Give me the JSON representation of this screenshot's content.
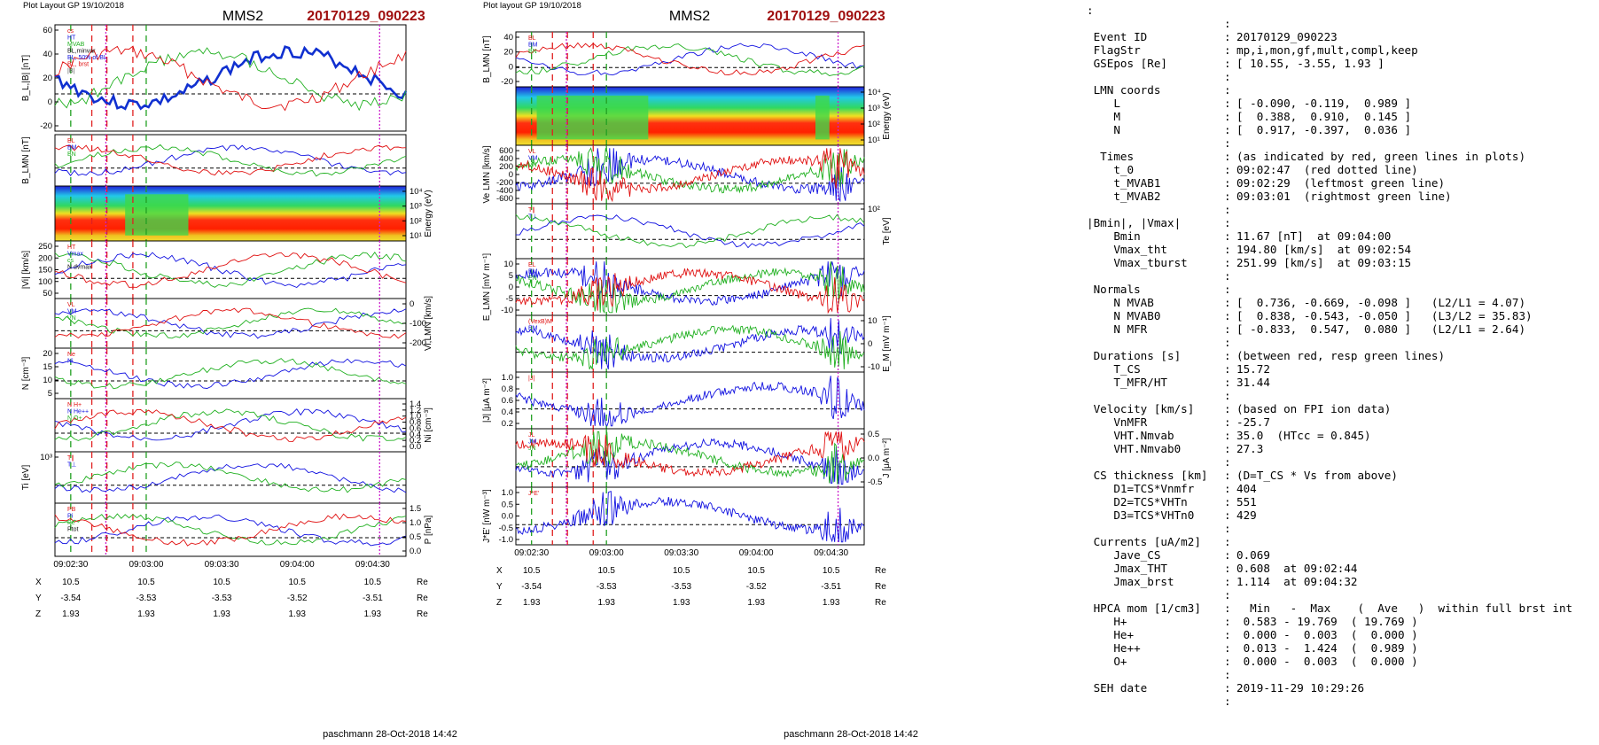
{
  "figures": [
    {
      "layout_label": "Plot Layout GP 19/10/2018",
      "spacecraft": "MMS2",
      "event": "20170129_090223",
      "footer": "paschmann 28-Oct-2018 14:42",
      "time_ticks": [
        "09:02:30",
        "09:03:00",
        "09:03:30",
        "09:04:00",
        "09:04:30"
      ],
      "position_rows": [
        {
          "label": "X",
          "values": [
            "10.5",
            "10.5",
            "10.5",
            "10.5",
            "10.5"
          ],
          "unit": "Re"
        },
        {
          "label": "Y",
          "values": [
            "-3.54",
            "-3.53",
            "-3.53",
            "-3.52",
            "-3.51"
          ],
          "unit": "Re"
        },
        {
          "label": "Z",
          "values": [
            "1.93",
            "1.93",
            "1.93",
            "1.93",
            "1.93"
          ],
          "unit": "Re"
        }
      ],
      "panels": [
        {
          "ylabel": "B_L,|B| [nT]",
          "ticks_left": [
            "60",
            "40",
            "20",
            "0",
            "-20"
          ],
          "ticks_right": [],
          "legend": [
            "cs",
            "HT",
            "MVAB",
            "BL,minvar",
            "BL, 50% of BL",
            "BL, brst",
            "|B|"
          ]
        },
        {
          "ylabel": "B_LMN [nT]",
          "ticks_left": [],
          "ticks_right": [],
          "legend": [
            "BL",
            "BM",
            "BN"
          ]
        },
        {
          "ylabel": "Energy (eV)",
          "ticks_left": [],
          "ticks_right": [
            "10⁴",
            "10³",
            "10²",
            "10¹"
          ],
          "legend": []
        },
        {
          "ylabel": "|Vi| [km/s]",
          "ticks_left": [
            "250",
            "200",
            "150",
            "100",
            "50"
          ],
          "ticks_right": [],
          "legend": [
            "HT",
            "Vmax",
            "cs",
            "N dvmax"
          ]
        },
        {
          "ylabel": "Vi,LMN [km/s]",
          "ticks_left": [],
          "ticks_right": [
            "0",
            "-100",
            "-200"
          ],
          "legend": [
            "VL",
            "VM",
            "VN"
          ]
        },
        {
          "ylabel": "N [cm⁻³]",
          "ticks_left": [
            "20",
            "15",
            "10",
            "5"
          ],
          "ticks_right": [],
          "legend": [
            "Ne",
            "Ni"
          ]
        },
        {
          "ylabel": "Ni [cm⁻³]",
          "ticks_left": [],
          "ticks_right": [
            "1.4",
            "1.2",
            "1.0",
            "0.8",
            "0.6",
            "0.4",
            "0.2",
            "0.0"
          ],
          "legend": [
            "N H+",
            "N He++",
            "N O+"
          ]
        },
        {
          "ylabel": "Ti [eV]",
          "ticks_left": [
            "10³"
          ],
          "ticks_right": [],
          "legend": [
            "T∥",
            "T⊥"
          ]
        },
        {
          "ylabel": "P [nPa]",
          "ticks_left": [],
          "ticks_right": [
            "1.5",
            "1.0",
            "0.5",
            "0.0"
          ],
          "legend": [
            "PB",
            "Pi",
            "Pe",
            "Ptot"
          ]
        }
      ]
    },
    {
      "layout_label": "Plot layout GP 19/10/2018",
      "spacecraft": "MMS2",
      "event": "20170129_090223",
      "footer": "paschmann 28-Oct-2018 14:42",
      "time_ticks": [
        "09:02:30",
        "09:03:00",
        "09:03:30",
        "09:04:00",
        "09:04:30"
      ],
      "position_rows": [
        {
          "label": "X",
          "values": [
            "10.5",
            "10.5",
            "10.5",
            "10.5",
            "10.5"
          ],
          "unit": "Re"
        },
        {
          "label": "Y",
          "values": [
            "-3.54",
            "-3.53",
            "-3.53",
            "-3.52",
            "-3.51"
          ],
          "unit": "Re"
        },
        {
          "label": "Z",
          "values": [
            "1.93",
            "1.93",
            "1.93",
            "1.93",
            "1.93"
          ],
          "unit": "Re"
        }
      ],
      "panels": [
        {
          "ylabel": "B_LMN [nT]",
          "ticks_left": [
            "40",
            "20",
            "0",
            "-20"
          ],
          "ticks_right": [],
          "legend": [
            "BL",
            "BM",
            "BN"
          ]
        },
        {
          "ylabel": "Energy (eV)",
          "ticks_left": [],
          "ticks_right": [
            "10⁴",
            "10³",
            "10²",
            "10¹"
          ],
          "legend": []
        },
        {
          "ylabel": "Ve LMN [km/s]",
          "ticks_left": [
            "600",
            "400",
            "200",
            "0",
            "-200",
            "-400",
            "-600"
          ],
          "ticks_right": [],
          "legend": [
            "VL",
            "VM",
            "VN"
          ]
        },
        {
          "ylabel": "Te [eV]",
          "ticks_left": [],
          "ticks_right": [
            "10²"
          ],
          "legend": [
            "T∥",
            "T⊥"
          ]
        },
        {
          "ylabel": "E_LMN [mV m⁻¹]",
          "ticks_left": [
            "10",
            "5",
            "0",
            "-5",
            "-10"
          ],
          "ticks_right": [],
          "legend": [
            "EL",
            "EM",
            "EN"
          ]
        },
        {
          "ylabel": "E_M [mV m⁻¹]",
          "ticks_left": [],
          "ticks_right": [
            "10",
            "0",
            "-10"
          ],
          "legend": [
            "(VexB)M",
            "EM"
          ]
        },
        {
          "ylabel": "|J| [μA m⁻²]",
          "ticks_left": [
            "1.0",
            "0.8",
            "0.6",
            "0.4",
            "0.2"
          ],
          "ticks_right": [],
          "legend": [
            "|J|"
          ]
        },
        {
          "ylabel": "J [μA m⁻²]",
          "ticks_left": [],
          "ticks_right": [
            "0.5",
            "0.0",
            "-0.5"
          ],
          "legend": [
            "JL",
            "JM",
            "JN"
          ]
        },
        {
          "ylabel": "J*E' [nW m⁻³]",
          "ticks_left": [
            "1.0",
            "0.5",
            "0.0",
            "-0.5",
            "-1.0"
          ],
          "ticks_right": [],
          "legend": [
            "J*E'"
          ]
        }
      ]
    }
  ],
  "summary": {
    "lines": [
      {
        "k": "",
        "v": ""
      },
      {
        "k": " Event ID",
        "v": "20170129_090223"
      },
      {
        "k": " FlagStr",
        "v": "mp,i,mon,gf,mult,compl,keep"
      },
      {
        "k": " GSEpos [Re]",
        "v": "[ 10.55, -3.55, 1.93 ]"
      },
      {
        "k": "",
        "v": ""
      },
      {
        "k": " LMN coords",
        "v": ""
      },
      {
        "k": "    L",
        "v": "[ -0.090, -0.119,  0.989 ]"
      },
      {
        "k": "    M",
        "v": "[  0.388,  0.910,  0.145 ]"
      },
      {
        "k": "    N",
        "v": "[  0.917, -0.397,  0.036 ]"
      },
      {
        "k": "",
        "v": ""
      },
      {
        "k": "  Times",
        "v": "(as indicated by red, green lines in plots)"
      },
      {
        "k": "    t_0",
        "v": "09:02:47  (red dotted line)"
      },
      {
        "k": "    t_MVAB1",
        "v": "09:02:29  (leftmost green line)"
      },
      {
        "k": "    t_MVAB2",
        "v": "09:03:01  (rightmost green line)"
      },
      {
        "k": "",
        "v": ""
      },
      {
        "k": "|Bmin|, |Vmax|",
        "v": ""
      },
      {
        "k": "    Bmin",
        "v": "11.67 [nT]  at 09:04:00"
      },
      {
        "k": "    Vmax_tht",
        "v": "194.80 [km/s]  at 09:02:54"
      },
      {
        "k": "    Vmax_tburst",
        "v": "251.99 [km/s]  at 09:03:15"
      },
      {
        "k": "",
        "v": ""
      },
      {
        "k": " Normals",
        "v": ""
      },
      {
        "k": "    N MVAB",
        "v": "[  0.736, -0.669, -0.098 ]   (L2/L1 = 4.07)"
      },
      {
        "k": "    N MVAB0",
        "v": "[  0.838, -0.543, -0.050 ]   (L3/L2 = 35.83)"
      },
      {
        "k": "    N MFR",
        "v": "[ -0.833,  0.547,  0.080 ]   (L2/L1 = 2.64)"
      },
      {
        "k": "",
        "v": ""
      },
      {
        "k": " Durations [s]",
        "v": "(between red, resp green lines)"
      },
      {
        "k": "    T_CS",
        "v": "15.72"
      },
      {
        "k": "    T_MFR/HT",
        "v": "31.44"
      },
      {
        "k": "",
        "v": ""
      },
      {
        "k": " Velocity [km/s]",
        "v": "(based on FPI ion data)"
      },
      {
        "k": "    VnMFR",
        "v": "-25.7"
      },
      {
        "k": "    VHT.Nmvab",
        "v": "35.0  (HTcc = 0.845)"
      },
      {
        "k": "    VHT.Nmvab0",
        "v": "27.3"
      },
      {
        "k": "",
        "v": ""
      },
      {
        "k": " CS thickness [km]",
        "v": "(D=T_CS * Vs from above)"
      },
      {
        "k": "    D1=TCS*Vnmfr",
        "v": "404"
      },
      {
        "k": "    D2=TCS*VHTn",
        "v": "551"
      },
      {
        "k": "    D3=TCS*VHTn0",
        "v": "429"
      },
      {
        "k": "",
        "v": ""
      },
      {
        "k": " Currents [uA/m2]",
        "v": ""
      },
      {
        "k": "    Jave_CS",
        "v": "0.069"
      },
      {
        "k": "    Jmax_THT",
        "v": "0.608  at 09:02:44"
      },
      {
        "k": "    Jmax_brst",
        "v": "1.114  at 09:04:32"
      },
      {
        "k": "",
        "v": ""
      },
      {
        "k": " HPCA mom [1/cm3]",
        "v": "  Min   -  Max    (  Ave   )  within full brst int"
      },
      {
        "k": "    H+",
        "v": " 0.583 - 19.769  ( 19.769 )"
      },
      {
        "k": "    He+",
        "v": " 0.000 -  0.003  (  0.000 )"
      },
      {
        "k": "    He++",
        "v": " 0.013 -  1.424  (  0.989 )"
      },
      {
        "k": "    O+",
        "v": " 0.000 -  0.003  (  0.000 )"
      },
      {
        "k": "",
        "v": ""
      },
      {
        "k": " SEH date",
        "v": "2019-11-29 10:29:26"
      },
      {
        "k": "",
        "v": ""
      }
    ]
  },
  "chart_data": [
    {
      "type": "line",
      "title": "MMS2 20170129_090223",
      "x_range": [
        "09:02:23",
        "09:04:42"
      ],
      "xticks": [
        "09:02:30",
        "09:03:00",
        "09:03:30",
        "09:04:00",
        "09:04:30"
      ],
      "markers": {
        "t_0": "09:02:47",
        "t_MVAB1": "09:02:29",
        "t_MVAB2": "09:03:01"
      },
      "series": [
        {
          "panel": "B_L,|B| [nT]",
          "name": "BL, brst",
          "x": [
            "09:02:23",
            "09:02:30",
            "09:02:40",
            "09:02:50",
            "09:03:00",
            "09:03:10",
            "09:03:20",
            "09:03:30",
            "09:03:40",
            "09:03:50",
            "09:04:00",
            "09:04:10",
            "09:04:20",
            "09:04:30",
            "09:04:40"
          ],
          "values": [
            -15,
            -14,
            10,
            30,
            52,
            56,
            44,
            35,
            5,
            20,
            -10,
            -8,
            5,
            32,
            10
          ]
        },
        {
          "panel": "N [cm⁻³]",
          "name": "Ne",
          "x": [
            "09:02:23",
            "09:02:35",
            "09:02:45",
            "09:02:55",
            "09:03:05",
            "09:03:15",
            "09:03:25",
            "09:03:35",
            "09:03:45",
            "09:03:55",
            "09:04:05",
            "09:04:15",
            "09:04:25",
            "09:04:35",
            "09:04:42"
          ],
          "values": [
            20,
            19,
            10,
            2,
            1,
            1,
            8,
            16,
            18,
            17,
            19,
            18,
            17,
            9,
            12
          ]
        },
        {
          "panel": "Ni [cm⁻³]",
          "name": "N He++",
          "x": [
            "09:02:23",
            "09:02:40",
            "09:02:50",
            "09:03:10",
            "09:03:20",
            "09:03:35",
            "09:03:50",
            "09:04:05",
            "09:04:20",
            "09:04:32"
          ],
          "values": [
            1.28,
            0.2,
            0.07,
            0.25,
            1.4,
            1.35,
            1.1,
            1.2,
            0.95,
            0.65
          ]
        }
      ]
    }
  ]
}
